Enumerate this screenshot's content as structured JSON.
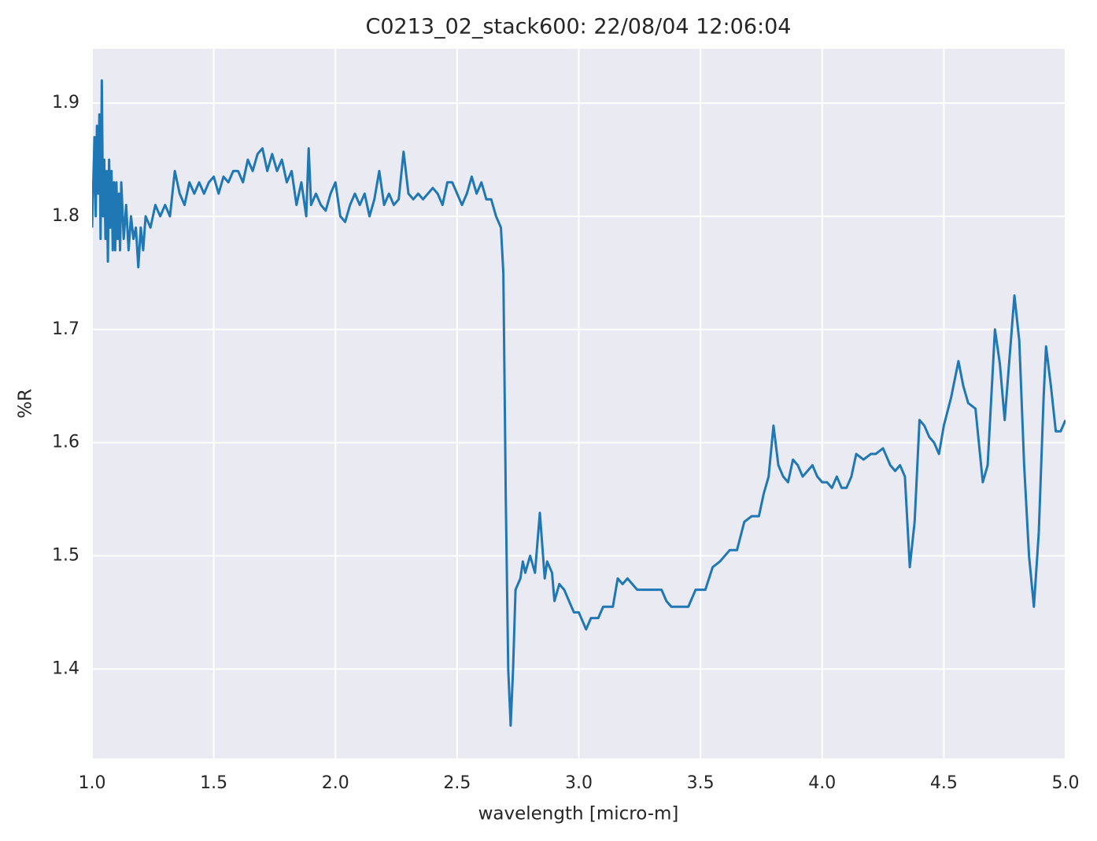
{
  "chart_data": {
    "type": "line",
    "title": "C0213_02_stack600:  22/08/04 12:06:04",
    "xlabel": "wavelength [micro-m]",
    "ylabel": "%R",
    "color": "#1f77b4",
    "grid": true,
    "xlim": [
      1.0,
      5.0
    ],
    "ylim": [
      1.321,
      1.948
    ],
    "xticks": [
      {
        "value": 1,
        "label": "1.0"
      },
      {
        "value": 1.5,
        "label": "1.5"
      },
      {
        "value": 2,
        "label": "2.0"
      },
      {
        "value": 2.5,
        "label": "2.5"
      },
      {
        "value": 3,
        "label": "3.0"
      },
      {
        "value": 3.5,
        "label": "3.5"
      },
      {
        "value": 4,
        "label": "4.0"
      },
      {
        "value": 4.5,
        "label": "4.5"
      },
      {
        "value": 5,
        "label": "5.0"
      }
    ],
    "yticks": [
      1.4,
      1.5,
      1.6,
      1.7,
      1.8,
      1.9
    ],
    "x": [
      1.0,
      1.01,
      1.015,
      1.02,
      1.025,
      1.03,
      1.035,
      1.04,
      1.045,
      1.05,
      1.055,
      1.06,
      1.065,
      1.07,
      1.075,
      1.08,
      1.085,
      1.09,
      1.095,
      1.1,
      1.105,
      1.11,
      1.115,
      1.12,
      1.13,
      1.14,
      1.15,
      1.16,
      1.17,
      1.18,
      1.19,
      1.2,
      1.21,
      1.22,
      1.24,
      1.26,
      1.28,
      1.3,
      1.32,
      1.34,
      1.36,
      1.38,
      1.4,
      1.42,
      1.44,
      1.46,
      1.48,
      1.5,
      1.52,
      1.54,
      1.56,
      1.58,
      1.6,
      1.62,
      1.64,
      1.66,
      1.68,
      1.7,
      1.72,
      1.74,
      1.76,
      1.78,
      1.8,
      1.82,
      1.84,
      1.86,
      1.88,
      1.89,
      1.9,
      1.92,
      1.94,
      1.96,
      1.98,
      2.0,
      2.02,
      2.04,
      2.06,
      2.08,
      2.1,
      2.12,
      2.14,
      2.16,
      2.18,
      2.2,
      2.22,
      2.24,
      2.26,
      2.28,
      2.3,
      2.32,
      2.34,
      2.36,
      2.38,
      2.4,
      2.42,
      2.44,
      2.46,
      2.48,
      2.5,
      2.52,
      2.54,
      2.56,
      2.58,
      2.6,
      2.62,
      2.64,
      2.66,
      2.68,
      2.69,
      2.7,
      2.71,
      2.72,
      2.73,
      2.74,
      2.76,
      2.77,
      2.78,
      2.8,
      2.82,
      2.84,
      2.86,
      2.87,
      2.89,
      2.9,
      2.92,
      2.94,
      2.96,
      2.98,
      3.0,
      3.02,
      3.03,
      3.05,
      3.08,
      3.1,
      3.14,
      3.16,
      3.18,
      3.2,
      3.24,
      3.3,
      3.34,
      3.36,
      3.38,
      3.42,
      3.45,
      3.48,
      3.52,
      3.55,
      3.58,
      3.62,
      3.65,
      3.68,
      3.71,
      3.74,
      3.76,
      3.78,
      3.8,
      3.82,
      3.84,
      3.86,
      3.88,
      3.9,
      3.92,
      3.94,
      3.96,
      3.98,
      4.0,
      4.02,
      4.04,
      4.06,
      4.08,
      4.1,
      4.12,
      4.14,
      4.17,
      4.2,
      4.22,
      4.25,
      4.28,
      4.3,
      4.32,
      4.34,
      4.36,
      4.38,
      4.4,
      4.42,
      4.44,
      4.46,
      4.48,
      4.5,
      4.53,
      4.56,
      4.58,
      4.6,
      4.63,
      4.66,
      4.68,
      4.71,
      4.73,
      4.75,
      4.77,
      4.79,
      4.81,
      4.83,
      4.85,
      4.87,
      4.89,
      4.91,
      4.92,
      4.94,
      4.96,
      4.98,
      5.0
    ],
    "values": [
      1.79,
      1.87,
      1.8,
      1.88,
      1.82,
      1.89,
      1.78,
      1.92,
      1.8,
      1.85,
      1.78,
      1.84,
      1.76,
      1.85,
      1.79,
      1.84,
      1.77,
      1.83,
      1.77,
      1.83,
      1.78,
      1.82,
      1.77,
      1.83,
      1.78,
      1.81,
      1.77,
      1.8,
      1.78,
      1.79,
      1.755,
      1.79,
      1.77,
      1.8,
      1.79,
      1.81,
      1.8,
      1.81,
      1.8,
      1.84,
      1.82,
      1.81,
      1.83,
      1.82,
      1.83,
      1.82,
      1.83,
      1.835,
      1.82,
      1.835,
      1.83,
      1.84,
      1.84,
      1.83,
      1.85,
      1.84,
      1.855,
      1.86,
      1.84,
      1.855,
      1.84,
      1.85,
      1.83,
      1.84,
      1.81,
      1.83,
      1.8,
      1.86,
      1.81,
      1.82,
      1.81,
      1.805,
      1.82,
      1.83,
      1.8,
      1.795,
      1.81,
      1.82,
      1.81,
      1.82,
      1.8,
      1.815,
      1.84,
      1.81,
      1.82,
      1.81,
      1.815,
      1.857,
      1.82,
      1.815,
      1.82,
      1.815,
      1.82,
      1.825,
      1.82,
      1.81,
      1.83,
      1.83,
      1.82,
      1.81,
      1.82,
      1.835,
      1.82,
      1.83,
      1.815,
      1.815,
      1.8,
      1.79,
      1.75,
      1.55,
      1.4,
      1.35,
      1.4,
      1.47,
      1.48,
      1.495,
      1.485,
      1.5,
      1.485,
      1.538,
      1.48,
      1.495,
      1.485,
      1.46,
      1.475,
      1.47,
      1.46,
      1.45,
      1.45,
      1.44,
      1.435,
      1.445,
      1.445,
      1.455,
      1.455,
      1.48,
      1.475,
      1.48,
      1.47,
      1.47,
      1.47,
      1.46,
      1.455,
      1.455,
      1.455,
      1.47,
      1.47,
      1.49,
      1.495,
      1.505,
      1.505,
      1.53,
      1.535,
      1.535,
      1.555,
      1.57,
      1.615,
      1.58,
      1.57,
      1.565,
      1.585,
      1.58,
      1.57,
      1.575,
      1.58,
      1.57,
      1.565,
      1.565,
      1.56,
      1.57,
      1.56,
      1.56,
      1.57,
      1.59,
      1.585,
      1.59,
      1.59,
      1.595,
      1.58,
      1.575,
      1.58,
      1.57,
      1.49,
      1.53,
      1.62,
      1.615,
      1.605,
      1.6,
      1.59,
      1.615,
      1.64,
      1.672,
      1.65,
      1.635,
      1.63,
      1.565,
      1.58,
      1.7,
      1.67,
      1.62,
      1.675,
      1.73,
      1.69,
      1.58,
      1.5,
      1.455,
      1.52,
      1.64,
      1.685,
      1.65,
      1.61,
      1.61,
      1.62
    ]
  }
}
